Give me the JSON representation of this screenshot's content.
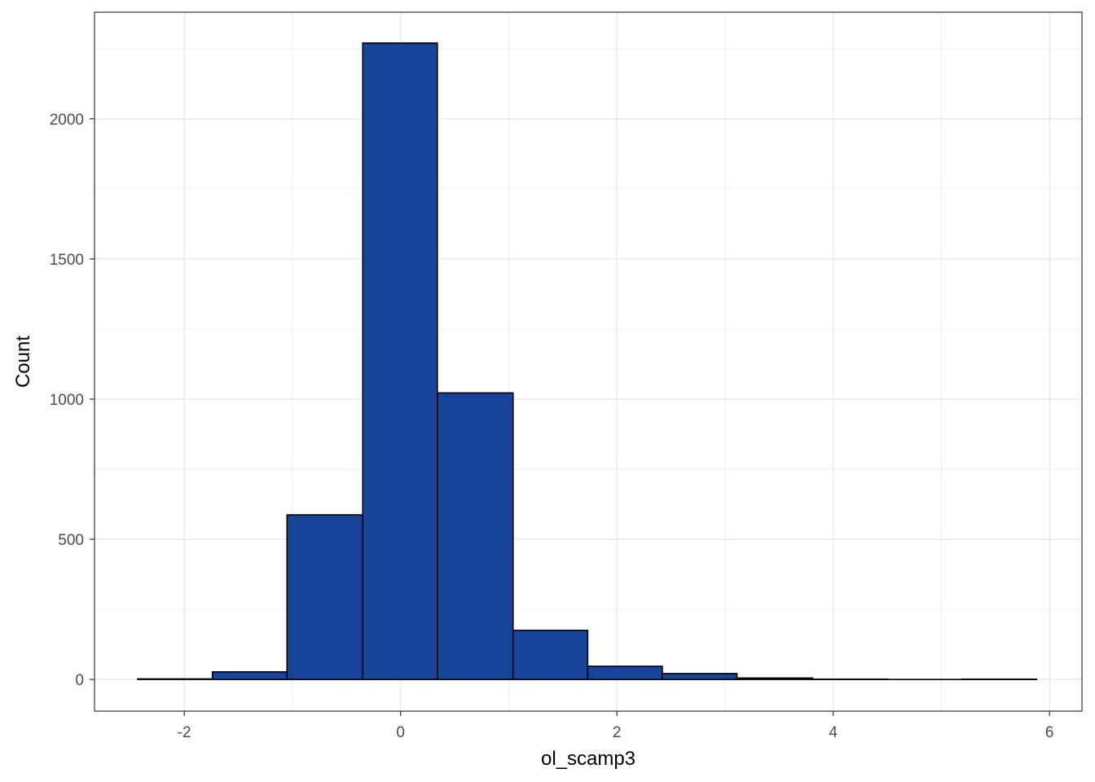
{
  "chart_data": {
    "type": "bar",
    "subtype": "histogram",
    "xlabel": "ol_scamp3",
    "ylabel": "Count",
    "xlim": [
      -2.83,
      6.3
    ],
    "ylim": [
      -113,
      2380
    ],
    "x_ticks": [
      -2,
      0,
      2,
      4,
      6
    ],
    "y_ticks": [
      0,
      500,
      1000,
      1500,
      2000
    ],
    "grid": true,
    "bin_edges": [
      -2.43,
      -1.74,
      -1.05,
      -0.35,
      0.34,
      1.04,
      1.73,
      2.42,
      3.11,
      3.81,
      4.5,
      5.19,
      5.88
    ],
    "values": [
      2,
      27,
      587,
      2270,
      1022,
      175,
      47,
      21,
      5,
      1,
      0,
      1
    ],
    "colors": {
      "fill": "#17439a",
      "outline": "#000000",
      "grid": "#ebebeb",
      "panel_border": "#333333"
    }
  }
}
